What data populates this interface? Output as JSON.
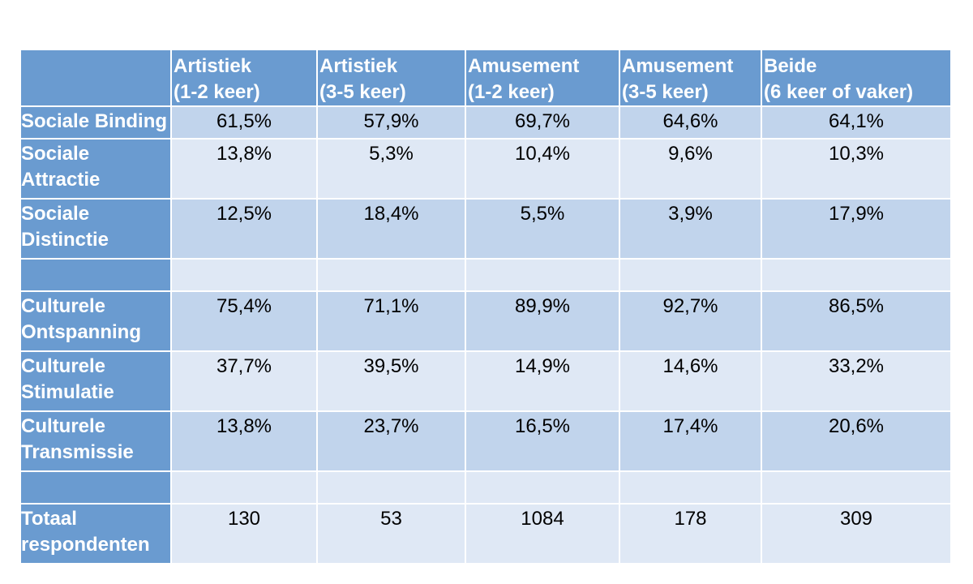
{
  "table": {
    "corner": "",
    "headers": [
      {
        "line1": "Artistiek",
        "line2": "(1-2 keer)"
      },
      {
        "line1": "Artistiek",
        "line2": "(3-5 keer)"
      },
      {
        "line1": "Amusement",
        "line2": "(1-2 keer)"
      },
      {
        "line1": "Amusement",
        "line2": "(3-5 keer)"
      },
      {
        "line1": "Beide",
        "line2": "(6 keer of vaker)"
      }
    ],
    "rows": [
      {
        "label_line1": "Sociale Binding",
        "label_line2": "",
        "values": [
          "61,5%",
          "57,9%",
          "69,7%",
          "64,6%",
          "64,1%"
        ]
      },
      {
        "label_line1": "Sociale",
        "label_line2": "Attractie",
        "values": [
          "13,8%",
          "5,3%",
          "10,4%",
          "9,6%",
          "10,3%"
        ]
      },
      {
        "label_line1": "Sociale",
        "label_line2": "Distinctie",
        "values": [
          "12,5%",
          "18,4%",
          "5,5%",
          "3,9%",
          "17,9%"
        ]
      },
      {
        "label_line1": "",
        "label_line2": "",
        "values": [
          "",
          "",
          "",
          "",
          ""
        ]
      },
      {
        "label_line1": "Culturele",
        "label_line2": "Ontspanning",
        "values": [
          "75,4%",
          "71,1%",
          "89,9%",
          "92,7%",
          "86,5%"
        ]
      },
      {
        "label_line1": "Culturele",
        "label_line2": "Stimulatie",
        "values": [
          "37,7%",
          "39,5%",
          "14,9%",
          "14,6%",
          "33,2%"
        ]
      },
      {
        "label_line1": "Culturele",
        "label_line2": "Transmissie",
        "values": [
          "13,8%",
          "23,7%",
          "16,5%",
          "17,4%",
          "20,6%"
        ]
      },
      {
        "label_line1": "",
        "label_line2": "",
        "values": [
          "",
          "",
          "",
          "",
          ""
        ]
      },
      {
        "label_line1": "Totaal",
        "label_line2": "respondenten",
        "values": [
          "130",
          "53",
          "1084",
          "178",
          "309"
        ]
      }
    ]
  },
  "colors": {
    "header_bg": "#6a9bd0",
    "row_dark": "#c1d4ec",
    "row_light": "#dfe8f5",
    "header_text": "#ffffff"
  }
}
